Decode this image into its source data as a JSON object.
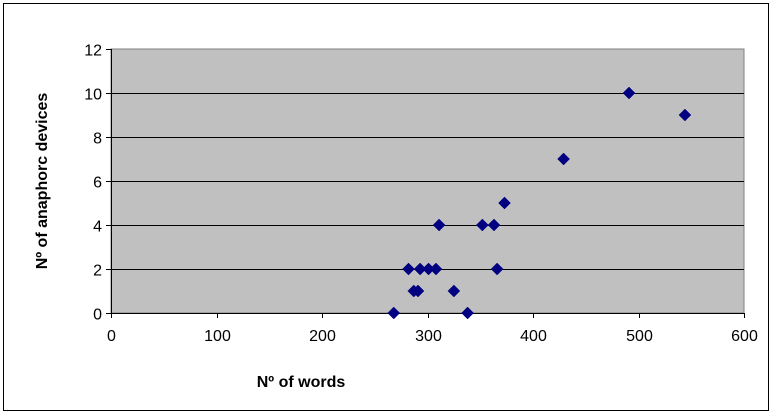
{
  "chart_data": {
    "type": "scatter",
    "title": "",
    "xlabel": "Nº of words",
    "ylabel": "Nº of anaphorc devices",
    "xlim": [
      0,
      600
    ],
    "ylim": [
      0,
      12
    ],
    "x_ticks": [
      "0",
      "100",
      "200",
      "300",
      "400",
      "500",
      "600"
    ],
    "y_ticks": [
      "0",
      "2",
      "4",
      "6",
      "8",
      "10",
      "12"
    ],
    "grid": "horizontal",
    "legend": "none",
    "plot_background": "#c0c0c0",
    "marker": "diamond",
    "marker_color": "#000080",
    "series": [
      {
        "points": [
          {
            "x": 268,
            "y": 0
          },
          {
            "x": 282,
            "y": 2
          },
          {
            "x": 287,
            "y": 1
          },
          {
            "x": 291,
            "y": 1
          },
          {
            "x": 293,
            "y": 2
          },
          {
            "x": 301,
            "y": 2
          },
          {
            "x": 308,
            "y": 2
          },
          {
            "x": 311,
            "y": 4
          },
          {
            "x": 325,
            "y": 1
          },
          {
            "x": 338,
            "y": 0
          },
          {
            "x": 352,
            "y": 4
          },
          {
            "x": 363,
            "y": 4
          },
          {
            "x": 366,
            "y": 2
          },
          {
            "x": 373,
            "y": 5
          },
          {
            "x": 429,
            "y": 7
          },
          {
            "x": 491,
            "y": 10
          },
          {
            "x": 544,
            "y": 9
          }
        ]
      }
    ]
  }
}
